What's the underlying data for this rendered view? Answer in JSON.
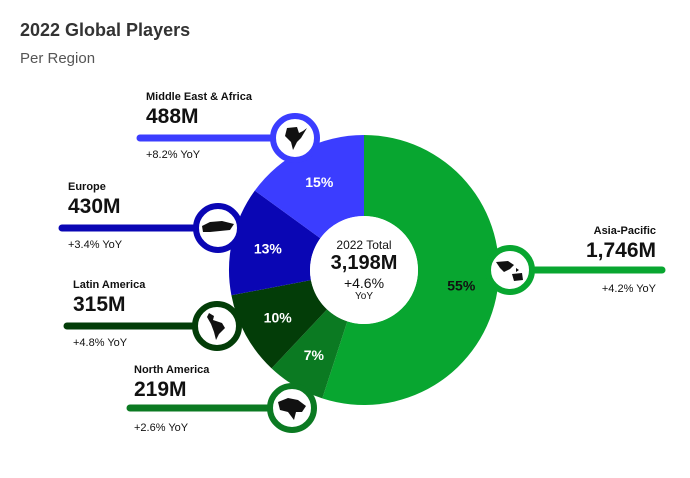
{
  "title": "2022 Global Players",
  "subtitle": "Per Region",
  "center": {
    "label": "2022 Total",
    "value": "3,198M",
    "change": "+4.6%",
    "change_unit": "YoY"
  },
  "chart_data": {
    "type": "pie",
    "title": "2022 Global Players",
    "subtitle": "Per Region",
    "donut": true,
    "categories": [
      "Asia-Pacific",
      "North America",
      "Latin America",
      "Europe",
      "Middle East & Africa"
    ],
    "values_millions": [
      1746,
      219,
      315,
      430,
      488
    ],
    "percent_labels": [
      "55%",
      "7%",
      "10%",
      "13%",
      "15%"
    ],
    "percents": [
      55,
      7,
      10,
      13,
      15
    ],
    "value_labels": [
      "1,746M",
      "219M",
      "315M",
      "430M",
      "488M"
    ],
    "yoy_labels": [
      "+4.2% YoY",
      "+2.6% YoY",
      "+4.8% YoY",
      "+3.4% YoY",
      "+8.2% YoY"
    ],
    "colors": [
      "#08a630",
      "#0b7a22",
      "#033d08",
      "#0a06b4",
      "#3b3dff"
    ],
    "percent_label_colors": [
      "#111111",
      "#ffffff",
      "#ffffff",
      "#ffffff",
      "#ffffff"
    ],
    "icons": [
      "asia-pacific-map-icon",
      "north-america-map-icon",
      "latin-america-map-icon",
      "europe-map-icon",
      "middle-east-africa-map-icon"
    ]
  }
}
